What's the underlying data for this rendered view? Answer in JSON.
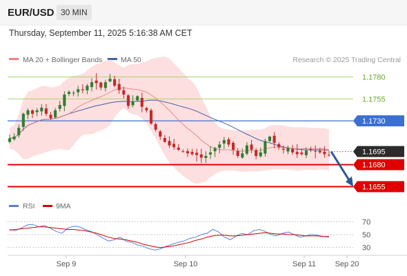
{
  "header": {
    "symbol": "EUR/USD",
    "timeframe": "30 MIN",
    "timestamp": "Thursday, September 11, 2025 5:16:38 AM CET"
  },
  "legend": {
    "ma20_label": "MA 20 + Bollinger Bands",
    "ma50_label": "MA 50",
    "copyright": "Research © 2025 Trading Central",
    "rsi_label": "RSI",
    "rsi_ma_label": "9MA"
  },
  "colors": {
    "candle_up": "#2f7d32",
    "candle_down": "#c62828",
    "bollinger_band": "#fcd4d4",
    "ma20": "#e57373",
    "ma50": "#3f5fa6",
    "resistance": "#a5d46a",
    "pivot": "#3b6fd1",
    "support": "#e00000",
    "current": "#2b2b2b",
    "forecast_arrow": "#2b5797",
    "rsi": "#5b7fd6",
    "rsi_ma": "#d00000"
  },
  "chart_data": [
    {
      "type": "candlestick",
      "title": "EUR/USD",
      "timeframe": "30 MIN",
      "x_tick_labels": [
        "Sep 9",
        "Sep 10",
        "Sep 11",
        "Sep 20"
      ],
      "ylim": [
        1.1642,
        1.1793
      ],
      "grid": false,
      "legend_position": "top-left",
      "series": [
        {
          "name": "MA 20 + Bollinger Bands",
          "kind": "ma_band"
        },
        {
          "name": "MA 50",
          "kind": "ma"
        }
      ],
      "ohlc_close_approx": [
        1.171,
        1.1712,
        1.1722,
        1.1738,
        1.1742,
        1.1738,
        1.1742,
        1.1745,
        1.1738,
        1.1733,
        1.1742,
        1.1748,
        1.176,
        1.1763,
        1.1762,
        1.1766,
        1.1765,
        1.177,
        1.1774,
        1.1773,
        1.1768,
        1.1774,
        1.1778,
        1.177,
        1.1765,
        1.176,
        1.1747,
        1.1752,
        1.1758,
        1.1746,
        1.1742,
        1.1727,
        1.172,
        1.1712,
        1.1706,
        1.1702,
        1.17,
        1.1697,
        1.1695,
        1.1693,
        1.1692,
        1.1691,
        1.1688,
        1.169,
        1.1694,
        1.1699,
        1.1703,
        1.1708,
        1.1703,
        1.1697,
        1.169,
        1.1693,
        1.1702,
        1.1697,
        1.169,
        1.1694,
        1.1707,
        1.1712,
        1.1705,
        1.17,
        1.1697,
        1.1699,
        1.1694,
        1.1692,
        1.1692,
        1.1696,
        1.1697,
        1.1695,
        1.1694,
        1.1692,
        1.1691
      ],
      "levels": [
        {
          "value": 1.178,
          "label": "1.1780",
          "role": "resistance"
        },
        {
          "value": 1.1755,
          "label": "1.1755",
          "role": "resistance"
        },
        {
          "value": 1.173,
          "label": "1.1730",
          "role": "pivot"
        },
        {
          "value": 1.1695,
          "label": "1.1695",
          "role": "current"
        },
        {
          "value": 1.168,
          "label": "1.1680",
          "role": "support"
        },
        {
          "value": 1.1655,
          "label": "1.1655",
          "role": "support"
        }
      ],
      "forecast": {
        "from": 1.1695,
        "to": 1.1655,
        "direction": "down"
      }
    },
    {
      "type": "line",
      "title": "RSI",
      "ylim": [
        20,
        80
      ],
      "y_ticks": [
        70,
        50,
        30
      ],
      "legend_position": "top-left",
      "series": [
        {
          "name": "RSI",
          "values": [
            58,
            56,
            60,
            65,
            66,
            62,
            64,
            60,
            55,
            52,
            60,
            63,
            62,
            58,
            55,
            50,
            45,
            40,
            42,
            46,
            40,
            38,
            34,
            32,
            28,
            26,
            28,
            32,
            35,
            38,
            40,
            44,
            46,
            50,
            52,
            58,
            54,
            46,
            42,
            48,
            52,
            50,
            56,
            58,
            55,
            50,
            48,
            52,
            54,
            50,
            46,
            48,
            50,
            49,
            47,
            46
          ]
        },
        {
          "name": "9MA",
          "values": [
            57,
            58,
            59,
            60,
            61,
            62,
            62,
            61,
            60,
            59,
            58,
            58,
            57,
            56,
            54,
            52,
            49,
            46,
            44,
            43,
            42,
            40,
            38,
            35,
            33,
            31,
            30,
            31,
            32,
            34,
            36,
            38,
            41,
            43,
            46,
            48,
            49,
            49,
            48,
            48,
            49,
            50,
            51,
            52,
            53,
            52,
            51,
            51,
            50,
            50,
            49,
            48,
            48,
            48,
            47,
            47
          ]
        }
      ]
    }
  ]
}
